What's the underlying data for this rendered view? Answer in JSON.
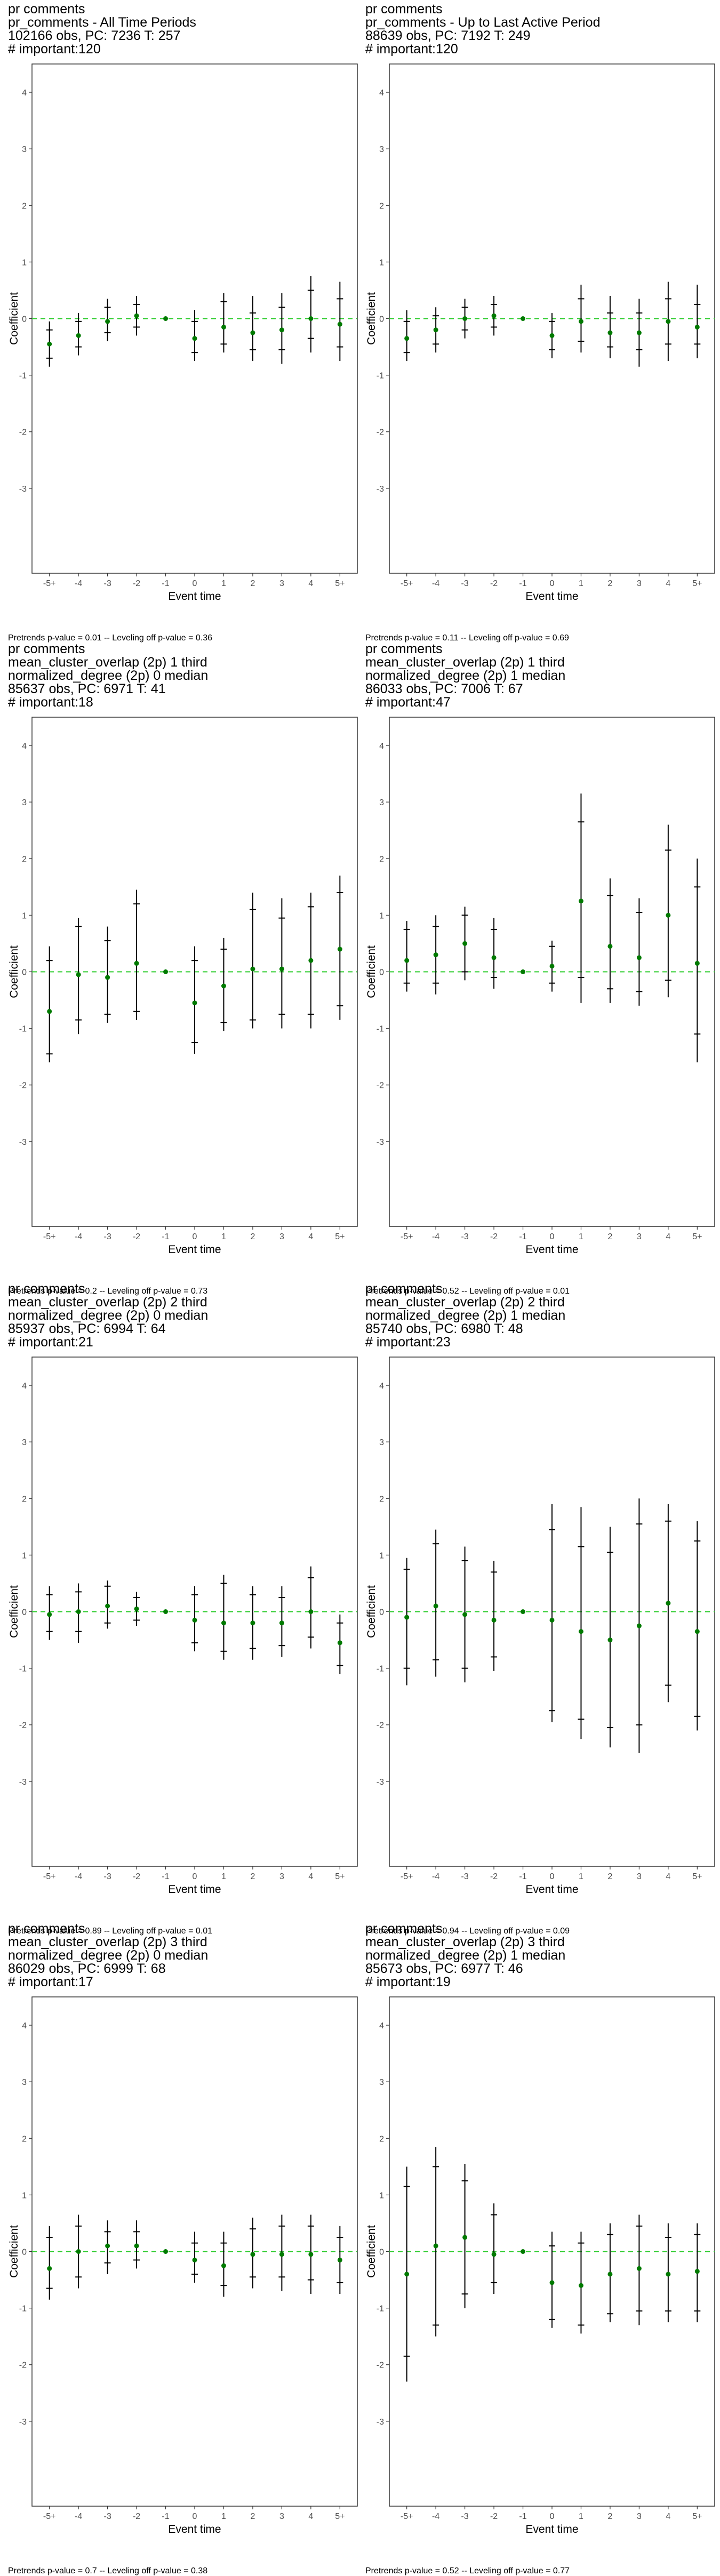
{
  "axis": {
    "ylabel": "Coefficient",
    "xlabel": "Event time",
    "x_ticks": [
      "-5+",
      "-4",
      "-3",
      "-2",
      "-1",
      "0",
      "1",
      "2",
      "3",
      "4",
      "5+"
    ],
    "ylim": [
      -4.5,
      4.5
    ],
    "y_ticks": [
      -3,
      -2,
      -1,
      0,
      1,
      2,
      3,
      4
    ]
  },
  "colors": {
    "reference_line": "#2ecc2e",
    "point": "#007a00",
    "errorbar": "#000000",
    "axis": "#333333",
    "tick_text": "#4d4d4d"
  },
  "chart_data": [
    {
      "type": "scatter",
      "title_lines": [
        "pr comments",
        "pr_comments - All Time Periods",
        "102166 obs, PC: 7236 T: 257",
        "# important:120"
      ],
      "caption": "Pretrends p-value = 0.01 -- Leveling off p-value = 0.36",
      "x": [
        "-5+",
        "-4",
        "-3",
        "-2",
        "-1",
        "0",
        "1",
        "2",
        "3",
        "4",
        "5+"
      ],
      "y": [
        -0.45,
        -0.3,
        -0.05,
        0.05,
        0,
        -0.35,
        -0.15,
        -0.25,
        -0.2,
        0.0,
        -0.1
      ],
      "ci_outer": [
        [
          -0.85,
          -0.05
        ],
        [
          -0.65,
          0.1
        ],
        [
          -0.4,
          0.35
        ],
        [
          -0.3,
          0.4
        ],
        null,
        [
          -0.75,
          0.15
        ],
        [
          -0.6,
          0.45
        ],
        [
          -0.75,
          0.4
        ],
        [
          -0.8,
          0.45
        ],
        [
          -0.6,
          0.75
        ],
        [
          -0.75,
          0.65
        ]
      ],
      "ci_inner": [
        [
          -0.7,
          -0.2
        ],
        [
          -0.5,
          -0.05
        ],
        [
          -0.25,
          0.2
        ],
        [
          -0.15,
          0.25
        ],
        null,
        [
          -0.6,
          -0.05
        ],
        [
          -0.45,
          0.3
        ],
        [
          -0.55,
          0.1
        ],
        [
          -0.55,
          0.2
        ],
        [
          -0.35,
          0.5
        ],
        [
          -0.5,
          0.35
        ]
      ]
    },
    {
      "type": "scatter",
      "title_lines": [
        "pr comments",
        "pr_comments - Up to Last Active Period",
        "88639 obs, PC: 7192 T: 249",
        "# important:120"
      ],
      "caption": "Pretrends p-value = 0.11 -- Leveling off p-value = 0.69",
      "x": [
        "-5+",
        "-4",
        "-3",
        "-2",
        "-1",
        "0",
        "1",
        "2",
        "3",
        "4",
        "5+"
      ],
      "y": [
        -0.35,
        -0.2,
        0.0,
        0.05,
        0,
        -0.3,
        -0.05,
        -0.25,
        -0.25,
        -0.05,
        -0.15
      ],
      "ci_outer": [
        [
          -0.75,
          0.15
        ],
        [
          -0.6,
          0.2
        ],
        [
          -0.35,
          0.35
        ],
        [
          -0.3,
          0.4
        ],
        null,
        [
          -0.7,
          0.1
        ],
        [
          -0.6,
          0.6
        ],
        [
          -0.7,
          0.4
        ],
        [
          -0.85,
          0.35
        ],
        [
          -0.75,
          0.65
        ],
        [
          -0.7,
          0.6
        ]
      ],
      "ci_inner": [
        [
          -0.6,
          -0.05
        ],
        [
          -0.45,
          0.05
        ],
        [
          -0.2,
          0.2
        ],
        [
          -0.15,
          0.25
        ],
        null,
        [
          -0.55,
          -0.05
        ],
        [
          -0.4,
          0.35
        ],
        [
          -0.5,
          0.1
        ],
        [
          -0.55,
          0.1
        ],
        [
          -0.45,
          0.35
        ],
        [
          -0.45,
          0.25
        ]
      ]
    },
    {
      "type": "scatter",
      "title_lines": [
        "pr comments",
        "mean_cluster_overlap (2p) 1 third",
        "normalized_degree (2p) 0 median",
        "85637 obs, PC: 6971 T: 41",
        "# important:18"
      ],
      "caption": "Pretrends p-value = 0.2 -- Leveling off p-value = 0.73",
      "x": [
        "-5+",
        "-4",
        "-3",
        "-2",
        "-1",
        "0",
        "1",
        "2",
        "3",
        "4",
        "5+"
      ],
      "y": [
        -0.7,
        -0.05,
        -0.1,
        0.15,
        0,
        -0.55,
        -0.25,
        0.05,
        0.05,
        0.2,
        0.4
      ],
      "ci_outer": [
        [
          -1.6,
          0.45
        ],
        [
          -1.1,
          0.95
        ],
        [
          -0.9,
          0.8
        ],
        [
          -0.85,
          1.45
        ],
        null,
        [
          -1.45,
          0.45
        ],
        [
          -1.05,
          0.6
        ],
        [
          -1.0,
          1.4
        ],
        [
          -1.0,
          1.3
        ],
        [
          -1.0,
          1.4
        ],
        [
          -0.85,
          1.7
        ]
      ],
      "ci_inner": [
        [
          -1.45,
          0.2
        ],
        [
          -0.85,
          0.8
        ],
        [
          -0.75,
          0.55
        ],
        [
          -0.7,
          1.2
        ],
        null,
        [
          -1.25,
          0.2
        ],
        [
          -0.9,
          0.4
        ],
        [
          -0.85,
          1.1
        ],
        [
          -0.75,
          0.95
        ],
        [
          -0.75,
          1.15
        ],
        [
          -0.6,
          1.4
        ]
      ]
    },
    {
      "type": "scatter",
      "title_lines": [
        "pr comments",
        "mean_cluster_overlap (2p) 1 third",
        "normalized_degree (2p) 1 median",
        "86033 obs, PC: 7006 T: 67",
        "# important:47"
      ],
      "caption": "Pretrends p-value = 0.52 -- Leveling off p-value = 0.01",
      "x": [
        "-5+",
        "-4",
        "-3",
        "-2",
        "-1",
        "0",
        "1",
        "2",
        "3",
        "4",
        "5+"
      ],
      "y": [
        0.2,
        0.3,
        0.5,
        0.25,
        0,
        0.1,
        1.25,
        0.45,
        0.25,
        1.0,
        0.15
      ],
      "ci_outer": [
        [
          -0.35,
          0.9
        ],
        [
          -0.4,
          1.0
        ],
        [
          -0.15,
          1.15
        ],
        [
          -0.3,
          0.95
        ],
        null,
        [
          -0.35,
          0.55
        ],
        [
          -0.55,
          3.15
        ],
        [
          -0.55,
          1.65
        ],
        [
          -0.6,
          1.3
        ],
        [
          -0.45,
          2.6
        ],
        [
          -1.6,
          2.0
        ]
      ],
      "ci_inner": [
        [
          -0.2,
          0.75
        ],
        [
          -0.2,
          0.8
        ],
        [
          0.0,
          1.0
        ],
        [
          -0.1,
          0.75
        ],
        null,
        [
          -0.2,
          0.45
        ],
        [
          -0.1,
          2.65
        ],
        [
          -0.3,
          1.35
        ],
        [
          -0.35,
          1.05
        ],
        [
          -0.15,
          2.15
        ],
        [
          -1.1,
          1.5
        ]
      ]
    },
    {
      "type": "scatter",
      "title_lines": [
        "pr comments",
        "mean_cluster_overlap (2p) 2 third",
        "normalized_degree (2p) 0 median",
        "85937 obs, PC: 6994 T: 64",
        "# important:21"
      ],
      "caption": "Pretrends p-value = 0.89 -- Leveling off p-value = 0.01",
      "x": [
        "-5+",
        "-4",
        "-3",
        "-2",
        "-1",
        "0",
        "1",
        "2",
        "3",
        "4",
        "5+"
      ],
      "y": [
        -0.05,
        0.0,
        0.1,
        0.05,
        0,
        -0.15,
        -0.2,
        -0.2,
        -0.2,
        0.0,
        -0.55
      ],
      "ci_outer": [
        [
          -0.5,
          0.45
        ],
        [
          -0.55,
          0.5
        ],
        [
          -0.3,
          0.55
        ],
        [
          -0.25,
          0.35
        ],
        null,
        [
          -0.7,
          0.45
        ],
        [
          -0.85,
          0.65
        ],
        [
          -0.85,
          0.45
        ],
        [
          -0.8,
          0.45
        ],
        [
          -0.65,
          0.8
        ],
        [
          -1.1,
          -0.05
        ]
      ],
      "ci_inner": [
        [
          -0.35,
          0.3
        ],
        [
          -0.35,
          0.35
        ],
        [
          -0.2,
          0.45
        ],
        [
          -0.15,
          0.25
        ],
        null,
        [
          -0.55,
          0.3
        ],
        [
          -0.7,
          0.5
        ],
        [
          -0.65,
          0.3
        ],
        [
          -0.6,
          0.25
        ],
        [
          -0.45,
          0.6
        ],
        [
          -0.95,
          -0.2
        ]
      ]
    },
    {
      "type": "scatter",
      "title_lines": [
        "pr comments",
        "mean_cluster_overlap (2p) 2 third",
        "normalized_degree (2p) 1 median",
        "85740 obs, PC: 6980 T: 48",
        "# important:23"
      ],
      "caption": "Pretrends p-value = 0.94 -- Leveling off p-value = 0.09",
      "x": [
        "-5+",
        "-4",
        "-3",
        "-2",
        "-1",
        "0",
        "1",
        "2",
        "3",
        "4",
        "5+"
      ],
      "y": [
        -0.1,
        0.1,
        -0.05,
        -0.15,
        0,
        -0.15,
        -0.35,
        -0.5,
        -0.25,
        0.15,
        -0.35
      ],
      "ci_outer": [
        [
          -1.3,
          0.95
        ],
        [
          -1.15,
          1.45
        ],
        [
          -1.25,
          1.15
        ],
        [
          -1.05,
          0.9
        ],
        null,
        [
          -1.95,
          1.9
        ],
        [
          -2.25,
          1.85
        ],
        [
          -2.4,
          1.5
        ],
        [
          -2.5,
          2.0
        ],
        [
          -1.6,
          1.9
        ],
        [
          -2.1,
          1.6
        ]
      ],
      "ci_inner": [
        [
          -1.0,
          0.75
        ],
        [
          -0.85,
          1.2
        ],
        [
          -1.0,
          0.9
        ],
        [
          -0.8,
          0.7
        ],
        null,
        [
          -1.75,
          1.45
        ],
        [
          -1.9,
          1.15
        ],
        [
          -2.05,
          1.05
        ],
        [
          -2.0,
          1.55
        ],
        [
          -1.3,
          1.6
        ],
        [
          -1.85,
          1.25
        ]
      ]
    },
    {
      "type": "scatter",
      "title_lines": [
        "pr comments",
        "mean_cluster_overlap (2p) 3 third",
        "normalized_degree (2p) 0 median",
        "86029 obs, PC: 6999 T: 68",
        "# important:17"
      ],
      "caption": "Pretrends p-value = 0.7 -- Leveling off p-value = 0.38",
      "x": [
        "-5+",
        "-4",
        "-3",
        "-2",
        "-1",
        "0",
        "1",
        "2",
        "3",
        "4",
        "5+"
      ],
      "y": [
        -0.3,
        0.0,
        0.1,
        0.1,
        0,
        -0.15,
        -0.25,
        -0.05,
        -0.05,
        -0.05,
        -0.15
      ],
      "ci_outer": [
        [
          -0.85,
          0.45
        ],
        [
          -0.65,
          0.65
        ],
        [
          -0.4,
          0.55
        ],
        [
          -0.3,
          0.55
        ],
        null,
        [
          -0.55,
          0.35
        ],
        [
          -0.8,
          0.35
        ],
        [
          -0.65,
          0.6
        ],
        [
          -0.7,
          0.65
        ],
        [
          -0.75,
          0.65
        ],
        [
          -0.75,
          0.45
        ]
      ],
      "ci_inner": [
        [
          -0.65,
          0.25
        ],
        [
          -0.45,
          0.45
        ],
        [
          -0.2,
          0.35
        ],
        [
          -0.15,
          0.35
        ],
        null,
        [
          -0.4,
          0.15
        ],
        [
          -0.6,
          0.15
        ],
        [
          -0.45,
          0.4
        ],
        [
          -0.45,
          0.45
        ],
        [
          -0.5,
          0.45
        ],
        [
          -0.55,
          0.25
        ]
      ]
    },
    {
      "type": "scatter",
      "title_lines": [
        "pr comments",
        "mean_cluster_overlap (2p) 3 third",
        "normalized_degree (2p) 1 median",
        "85673 obs, PC: 6977 T: 46",
        "# important:19"
      ],
      "caption": "Pretrends p-value = 0.52 -- Leveling off p-value = 0.77",
      "x": [
        "-5+",
        "-4",
        "-3",
        "-2",
        "-1",
        "0",
        "1",
        "2",
        "3",
        "4",
        "5+"
      ],
      "y": [
        -0.4,
        0.1,
        0.25,
        -0.05,
        0,
        -0.55,
        -0.6,
        -0.4,
        -0.3,
        -0.4,
        -0.35
      ],
      "ci_outer": [
        [
          -2.3,
          1.5
        ],
        [
          -1.5,
          1.85
        ],
        [
          -1.0,
          1.55
        ],
        [
          -0.75,
          0.85
        ],
        null,
        [
          -1.35,
          0.35
        ],
        [
          -1.45,
          0.35
        ],
        [
          -1.25,
          0.5
        ],
        [
          -1.3,
          0.65
        ],
        [
          -1.25,
          0.5
        ],
        [
          -1.25,
          0.5
        ]
      ],
      "ci_inner": [
        [
          -1.85,
          1.15
        ],
        [
          -1.3,
          1.5
        ],
        [
          -0.75,
          1.25
        ],
        [
          -0.55,
          0.65
        ],
        null,
        [
          -1.2,
          0.1
        ],
        [
          -1.3,
          0.15
        ],
        [
          -1.1,
          0.3
        ],
        [
          -1.05,
          0.45
        ],
        [
          -1.05,
          0.25
        ],
        [
          -1.05,
          0.3
        ]
      ]
    }
  ]
}
